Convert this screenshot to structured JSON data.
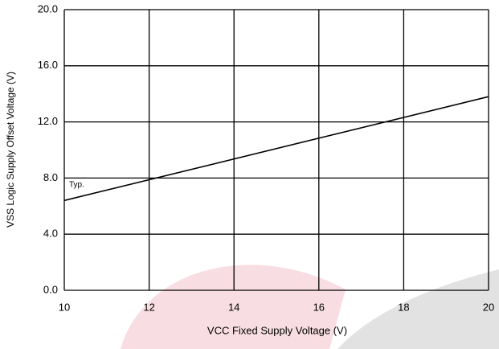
{
  "chart_data": {
    "type": "line",
    "x_label": "VCC Fixed Supply Voltage (V)",
    "y_label": "VSS Logic Supply Offset Voltage (V)",
    "annotation": "Typ.",
    "x": [
      10,
      20
    ],
    "series": [
      {
        "name": "Typ.",
        "color": "#000000",
        "values": [
          6.4,
          13.8
        ]
      }
    ],
    "xlim": [
      10,
      20
    ],
    "xticks": [
      10,
      12,
      14,
      16,
      18,
      20
    ],
    "ylim": [
      0,
      20
    ],
    "yticks": [
      {
        "value": 0,
        "label": "0.0"
      },
      {
        "value": 4,
        "label": "4.0"
      },
      {
        "value": 8,
        "label": "8.0"
      },
      {
        "value": 12,
        "label": "12.0"
      },
      {
        "value": 16,
        "label": "16.0"
      },
      {
        "value": 20,
        "label": "20.0"
      }
    ],
    "grid": true
  }
}
